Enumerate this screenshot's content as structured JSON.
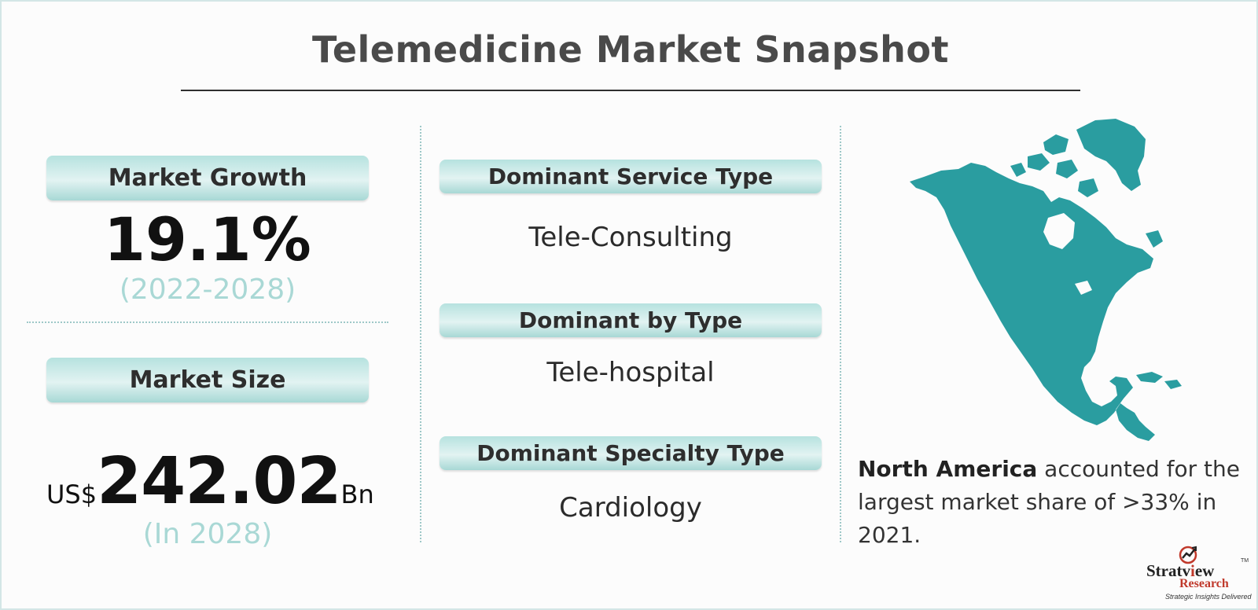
{
  "title": "Telemedicine Market Snapshot",
  "market_growth": {
    "label": "Market Growth",
    "value": "19.1%",
    "period": "(2022-2028)"
  },
  "market_size": {
    "label": "Market Size",
    "prefix": "US$",
    "value": "242.02",
    "suffix": "Bn",
    "period": "(In 2028)"
  },
  "segments": [
    {
      "label": "Dominant Service Type",
      "value": "Tele-Consulting"
    },
    {
      "label": "Dominant by Type",
      "value": "Tele-hospital"
    },
    {
      "label": "Dominant Specialty Type",
      "value": "Cardiology"
    }
  ],
  "region": {
    "name": "North America",
    "text": " accounted for the largest market share of >33% in 2021."
  },
  "logo": {
    "brand_part1": "Stratv",
    "brand_part2": "ew",
    "tm": "TM",
    "brand_line2": "Research",
    "tagline": "Strategic Insights Delivered"
  },
  "colors": {
    "accent": "#2a9da0",
    "pill": "#b6e2df",
    "muted_text": "#a9d8d5",
    "logo_red": "#c0392b"
  }
}
